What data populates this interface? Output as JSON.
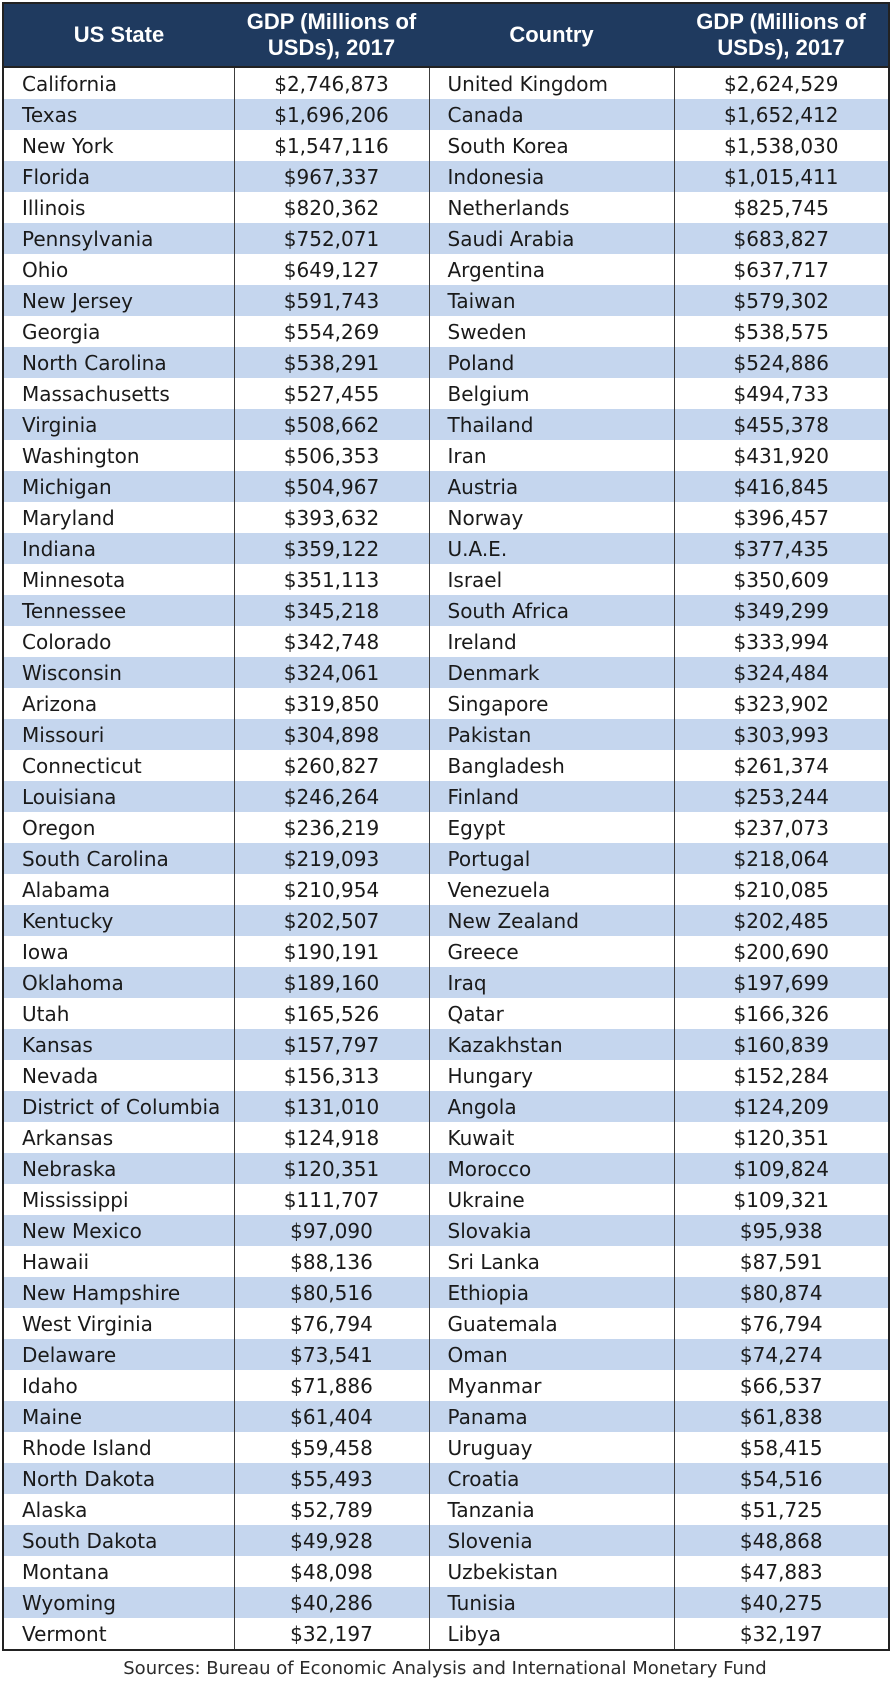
{
  "headers": {
    "state": "US State",
    "state_gdp": "GDP (Millions of USDs), 2017",
    "country": "Country",
    "country_gdp": "GDP (Millions of USDs), 2017"
  },
  "rows": [
    {
      "state": "California",
      "state_gdp": "$2,746,873",
      "country": "United Kingdom",
      "country_gdp": "$2,624,529"
    },
    {
      "state": "Texas",
      "state_gdp": "$1,696,206",
      "country": "Canada",
      "country_gdp": "$1,652,412"
    },
    {
      "state": "New York",
      "state_gdp": "$1,547,116",
      "country": "South Korea",
      "country_gdp": "$1,538,030"
    },
    {
      "state": "Florida",
      "state_gdp": "$967,337",
      "country": "Indonesia",
      "country_gdp": "$1,015,411"
    },
    {
      "state": "Illinois",
      "state_gdp": "$820,362",
      "country": "Netherlands",
      "country_gdp": "$825,745"
    },
    {
      "state": "Pennsylvania",
      "state_gdp": "$752,071",
      "country": "Saudi Arabia",
      "country_gdp": "$683,827"
    },
    {
      "state": "Ohio",
      "state_gdp": "$649,127",
      "country": "Argentina",
      "country_gdp": "$637,717"
    },
    {
      "state": "New Jersey",
      "state_gdp": "$591,743",
      "country": "Taiwan",
      "country_gdp": "$579,302"
    },
    {
      "state": "Georgia",
      "state_gdp": "$554,269",
      "country": "Sweden",
      "country_gdp": "$538,575"
    },
    {
      "state": "North Carolina",
      "state_gdp": "$538,291",
      "country": "Poland",
      "country_gdp": "$524,886"
    },
    {
      "state": "Massachusetts",
      "state_gdp": "$527,455",
      "country": "Belgium",
      "country_gdp": "$494,733"
    },
    {
      "state": "Virginia",
      "state_gdp": "$508,662",
      "country": "Thailand",
      "country_gdp": "$455,378"
    },
    {
      "state": "Washington",
      "state_gdp": "$506,353",
      "country": "Iran",
      "country_gdp": "$431,920"
    },
    {
      "state": "Michigan",
      "state_gdp": "$504,967",
      "country": "Austria",
      "country_gdp": "$416,845"
    },
    {
      "state": "Maryland",
      "state_gdp": "$393,632",
      "country": "Norway",
      "country_gdp": "$396,457"
    },
    {
      "state": "Indiana",
      "state_gdp": "$359,122",
      "country": "U.A.E.",
      "country_gdp": "$377,435"
    },
    {
      "state": "Minnesota",
      "state_gdp": "$351,113",
      "country": "Israel",
      "country_gdp": "$350,609"
    },
    {
      "state": "Tennessee",
      "state_gdp": "$345,218",
      "country": "South Africa",
      "country_gdp": "$349,299"
    },
    {
      "state": "Colorado",
      "state_gdp": "$342,748",
      "country": "Ireland",
      "country_gdp": "$333,994"
    },
    {
      "state": "Wisconsin",
      "state_gdp": "$324,061",
      "country": "Denmark",
      "country_gdp": "$324,484"
    },
    {
      "state": "Arizona",
      "state_gdp": "$319,850",
      "country": "Singapore",
      "country_gdp": "$323,902"
    },
    {
      "state": "Missouri",
      "state_gdp": "$304,898",
      "country": "Pakistan",
      "country_gdp": "$303,993"
    },
    {
      "state": "Connecticut",
      "state_gdp": "$260,827",
      "country": "Bangladesh",
      "country_gdp": "$261,374"
    },
    {
      "state": "Louisiana",
      "state_gdp": "$246,264",
      "country": "Finland",
      "country_gdp": "$253,244"
    },
    {
      "state": "Oregon",
      "state_gdp": "$236,219",
      "country": "Egypt",
      "country_gdp": "$237,073"
    },
    {
      "state": "South Carolina",
      "state_gdp": "$219,093",
      "country": "Portugal",
      "country_gdp": "$218,064"
    },
    {
      "state": "Alabama",
      "state_gdp": "$210,954",
      "country": "Venezuela",
      "country_gdp": "$210,085"
    },
    {
      "state": "Kentucky",
      "state_gdp": "$202,507",
      "country": "New Zealand",
      "country_gdp": "$202,485"
    },
    {
      "state": "Iowa",
      "state_gdp": "$190,191",
      "country": "Greece",
      "country_gdp": "$200,690"
    },
    {
      "state": "Oklahoma",
      "state_gdp": "$189,160",
      "country": "Iraq",
      "country_gdp": "$197,699"
    },
    {
      "state": "Utah",
      "state_gdp": "$165,526",
      "country": "Qatar",
      "country_gdp": "$166,326"
    },
    {
      "state": "Kansas",
      "state_gdp": "$157,797",
      "country": "Kazakhstan",
      "country_gdp": "$160,839"
    },
    {
      "state": "Nevada",
      "state_gdp": "$156,313",
      "country": "Hungary",
      "country_gdp": "$152,284"
    },
    {
      "state": "District of Columbia",
      "state_gdp": "$131,010",
      "country": "Angola",
      "country_gdp": "$124,209"
    },
    {
      "state": "Arkansas",
      "state_gdp": "$124,918",
      "country": "Kuwait",
      "country_gdp": "$120,351"
    },
    {
      "state": "Nebraska",
      "state_gdp": "$120,351",
      "country": "Morocco",
      "country_gdp": "$109,824"
    },
    {
      "state": "Mississippi",
      "state_gdp": "$111,707",
      "country": "Ukraine",
      "country_gdp": "$109,321"
    },
    {
      "state": "New Mexico",
      "state_gdp": "$97,090",
      "country": "Slovakia",
      "country_gdp": "$95,938"
    },
    {
      "state": "Hawaii",
      "state_gdp": "$88,136",
      "country": "Sri Lanka",
      "country_gdp": "$87,591"
    },
    {
      "state": "New Hampshire",
      "state_gdp": "$80,516",
      "country": "Ethiopia",
      "country_gdp": "$80,874"
    },
    {
      "state": "West Virginia",
      "state_gdp": "$76,794",
      "country": "Guatemala",
      "country_gdp": "$76,794"
    },
    {
      "state": "Delaware",
      "state_gdp": "$73,541",
      "country": "Oman",
      "country_gdp": "$74,274"
    },
    {
      "state": "Idaho",
      "state_gdp": "$71,886",
      "country": "Myanmar",
      "country_gdp": "$66,537"
    },
    {
      "state": "Maine",
      "state_gdp": "$61,404",
      "country": "Panama",
      "country_gdp": "$61,838"
    },
    {
      "state": "Rhode Island",
      "state_gdp": "$59,458",
      "country": "Uruguay",
      "country_gdp": "$58,415"
    },
    {
      "state": "North Dakota",
      "state_gdp": "$55,493",
      "country": "Croatia",
      "country_gdp": "$54,516"
    },
    {
      "state": "Alaska",
      "state_gdp": "$52,789",
      "country": "Tanzania",
      "country_gdp": "$51,725"
    },
    {
      "state": "South Dakota",
      "state_gdp": "$49,928",
      "country": "Slovenia",
      "country_gdp": "$48,868"
    },
    {
      "state": "Montana",
      "state_gdp": "$48,098",
      "country": "Uzbekistan",
      "country_gdp": "$47,883"
    },
    {
      "state": "Wyoming",
      "state_gdp": "$40,286",
      "country": "Tunisia",
      "country_gdp": "$40,275"
    },
    {
      "state": "Vermont",
      "state_gdp": "$32,197",
      "country": "Libya",
      "country_gdp": "$32,197"
    }
  ],
  "source": "Sources: Bureau of Economic Analysis and International Monetary Fund",
  "colors": {
    "header_bg": "#1f3a5f",
    "stripe": "#c5d6ee"
  }
}
